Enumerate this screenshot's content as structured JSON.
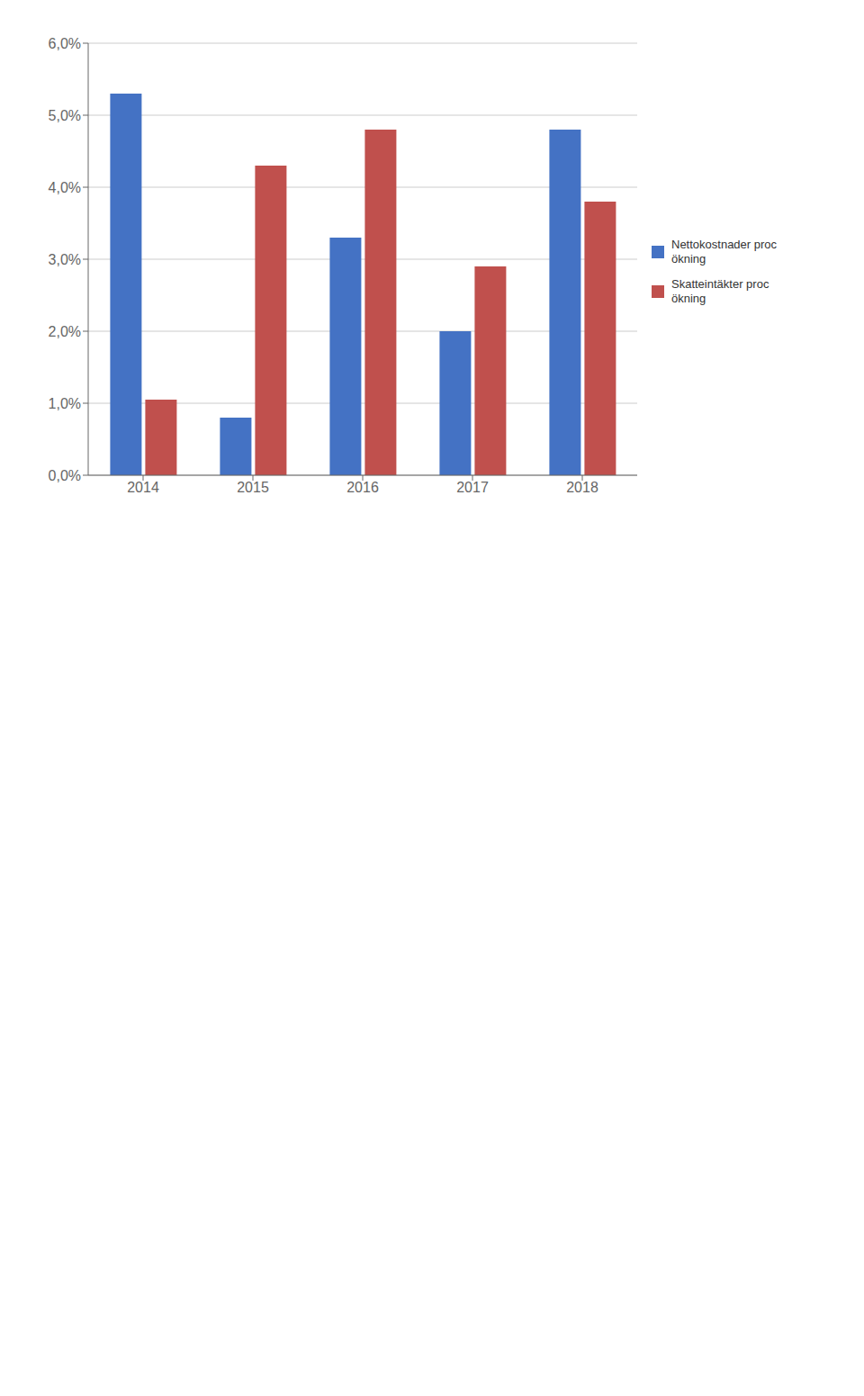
{
  "chart_data": {
    "type": "bar",
    "categories": [
      "2014",
      "2015",
      "2016",
      "2017",
      "2018"
    ],
    "series": [
      {
        "name": "Nettokostnader proc\nökning",
        "color": "#4472C4",
        "values": [
          5.3,
          0.8,
          3.3,
          2.0,
          4.8
        ]
      },
      {
        "name": "Skatteintäkter proc\nökning",
        "color": "#C0504D",
        "values": [
          1.05,
          4.3,
          4.8,
          2.9,
          3.8
        ]
      }
    ],
    "ylim": [
      0.0,
      6.0
    ],
    "yticks": [
      {
        "value": 0.0,
        "label": "0,0%"
      },
      {
        "value": 1.0,
        "label": "1,0%"
      },
      {
        "value": 2.0,
        "label": "2,0%"
      },
      {
        "value": 3.0,
        "label": "3,0%"
      },
      {
        "value": 4.0,
        "label": "4,0%"
      },
      {
        "value": 5.0,
        "label": "5,0%"
      },
      {
        "value": 6.0,
        "label": "6,0%"
      }
    ],
    "grid": true,
    "legend": "right"
  }
}
